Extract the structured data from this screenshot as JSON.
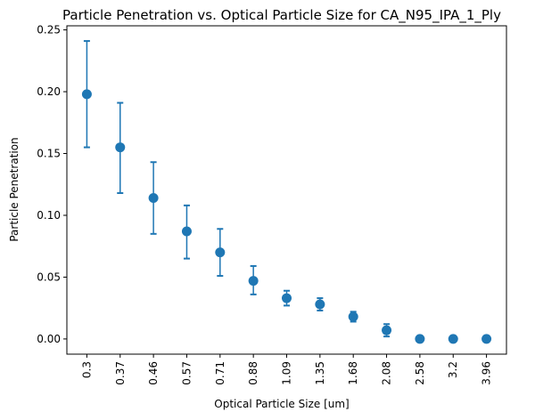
{
  "chart_data": {
    "type": "scatter",
    "title": "Particle Penetration vs. Optical Particle Size for CA_N95_IPA_1_Ply",
    "xlabel": "Optical Particle Size [um]",
    "ylabel": "Particle Penetration",
    "categories": [
      "0.3",
      "0.37",
      "0.46",
      "0.57",
      "0.71",
      "0.88",
      "1.09",
      "1.35",
      "1.68",
      "2.08",
      "2.58",
      "3.2",
      "3.96"
    ],
    "series": [
      {
        "values": [
          0.198,
          0.155,
          0.114,
          0.087,
          0.07,
          0.047,
          0.033,
          0.028,
          0.018,
          0.007,
          0.0,
          0.0,
          0.0
        ],
        "err_low": [
          0.155,
          0.118,
          0.085,
          0.065,
          0.051,
          0.036,
          0.027,
          0.023,
          0.014,
          0.002,
          0.0,
          0.0,
          0.0
        ],
        "err_high": [
          0.241,
          0.191,
          0.143,
          0.108,
          0.089,
          0.059,
          0.039,
          0.033,
          0.022,
          0.012,
          0.0,
          0.0,
          0.0
        ],
        "color": "#1f77b4"
      }
    ],
    "yticks": [
      "0.00",
      "0.05",
      "0.10",
      "0.15",
      "0.20",
      "0.25"
    ],
    "ytick_values": [
      0,
      0.05,
      0.1,
      0.15,
      0.2,
      0.25
    ],
    "ylim": [
      -0.0123,
      0.2533
    ],
    "grid": false,
    "legend": false
  }
}
